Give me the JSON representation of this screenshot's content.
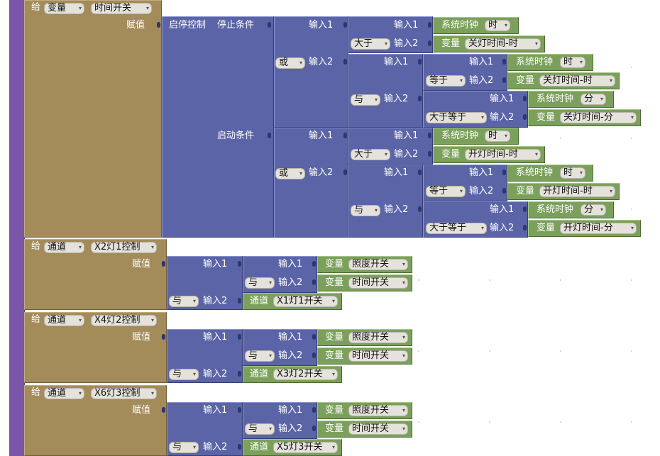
{
  "labels": {
    "assign": "给",
    "value": "赋值",
    "input1": "输入1",
    "input2": "输入2",
    "stop_cond": "停止条件",
    "start_cond": "启动条件",
    "start_stop": "启停控制"
  },
  "dropdowns": {
    "variable": "变量",
    "channel": "通道",
    "time_switch": "时间开关",
    "x2": "X2灯1控制",
    "x4": "X4灯2控制",
    "x6": "X6灯3控制",
    "gt": "大于",
    "eq": "等于",
    "ge": "大于等于",
    "or": "或",
    "and": "与",
    "hour": "时",
    "minute": "分",
    "off_h": "关灯时间-时",
    "off_m": "关灯时间-分",
    "on_h": "开灯时间-时",
    "on_m": "开灯时间-分",
    "illum": "照度开关",
    "time_sw": "时间开关",
    "x1": "X1灯1开关",
    "x3": "X3灯2开关",
    "x5": "X5灯3开关"
  },
  "values": {
    "sys_clock": "系统时钟",
    "variable": "变量",
    "channel": "通道"
  },
  "icons": {
    "dropdown": "▾"
  }
}
